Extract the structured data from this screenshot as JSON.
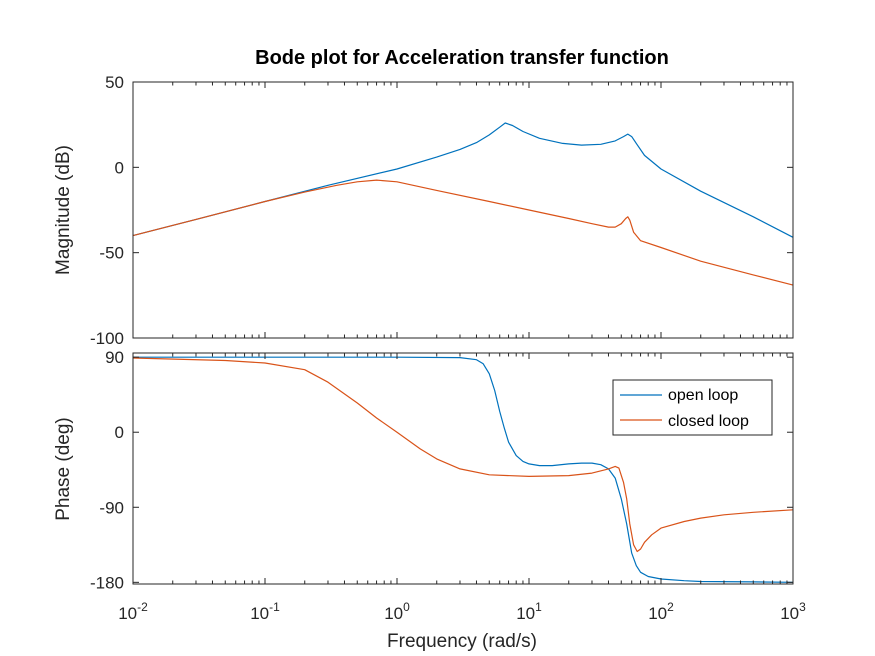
{
  "chart_data": {
    "type": "line",
    "title": "Bode plot for Acceleration transfer function",
    "xlabel": "Frequency  (rad/s)",
    "x_scale": "log",
    "xlim": [
      0.01,
      1000
    ],
    "x_ticks": [
      {
        "value": 0.01,
        "base": "10",
        "exp": "-2"
      },
      {
        "value": 0.1,
        "base": "10",
        "exp": "-1"
      },
      {
        "value": 1,
        "base": "10",
        "exp": "0"
      },
      {
        "value": 10,
        "base": "10",
        "exp": "1"
      },
      {
        "value": 100,
        "base": "10",
        "exp": "2"
      },
      {
        "value": 1000,
        "base": "10",
        "exp": "3"
      }
    ],
    "grid": false,
    "legend": {
      "location": "upper-right of phase plot",
      "entries": [
        {
          "name": "open loop",
          "color": "#0072BD"
        },
        {
          "name": "closed loop",
          "color": "#D95319"
        }
      ]
    },
    "subplots": [
      {
        "id": "magnitude",
        "ylabel": "Magnitude (dB)",
        "ylim": [
          -100,
          50
        ],
        "y_ticks": [
          50,
          0,
          -50,
          -100
        ],
        "y_tick_labels": [
          "50",
          "0",
          "-50",
          "-100"
        ],
        "series": [
          {
            "name": "open loop",
            "color": "#0072BD",
            "x": [
              0.01,
              0.03,
              0.1,
              0.3,
              1,
              2,
              3,
              4,
              5,
              6,
              6.6,
              7.5,
              9,
              12,
              18,
              25,
              35,
              45,
              52,
              56,
              60,
              65,
              75,
              100,
              200,
              500,
              1000
            ],
            "y": [
              -40,
              -30.5,
              -20,
              -10.5,
              -1,
              6,
              10.5,
              14.5,
              19,
              23.5,
              26,
              24.5,
              21,
              17,
              14,
              13,
              13.5,
              15.5,
              18,
              19.5,
              18,
              14,
              7,
              -1,
              -14,
              -29,
              -41
            ]
          },
          {
            "name": "closed loop",
            "color": "#D95319",
            "x": [
              0.01,
              0.03,
              0.1,
              0.2,
              0.35,
              0.5,
              0.7,
              1,
              2,
              5,
              10,
              20,
              30,
              40,
              45,
              50,
              54,
              56,
              58,
              62,
              70,
              100,
              200,
              500,
              1000
            ],
            "y": [
              -40,
              -30.5,
              -20,
              -14.5,
              -10.5,
              -8.5,
              -7.5,
              -8.5,
              -13.5,
              -20,
              -25,
              -30,
              -33,
              -35,
              -35,
              -33,
              -30,
              -29,
              -31,
              -38,
              -43,
              -47,
              -55,
              -63,
              -69
            ]
          }
        ]
      },
      {
        "id": "phase",
        "ylabel": "Phase (deg)",
        "ylim": [
          -182,
          95
        ],
        "y_ticks": [
          90,
          0,
          -90,
          -180
        ],
        "y_tick_labels": [
          "90",
          "0",
          "-90",
          "-180"
        ],
        "series": [
          {
            "name": "open loop",
            "color": "#0072BD",
            "x": [
              0.01,
              0.1,
              1,
              3,
              4,
              4.5,
              5,
              5.5,
              6,
              6.5,
              7,
              8,
              9,
              10,
              12,
              15,
              20,
              25,
              30,
              35,
              40,
              45,
              50,
              55,
              60,
              65,
              70,
              80,
              100,
              150,
              200,
              500,
              1000
            ],
            "y": [
              90,
              90,
              90,
              89.5,
              87,
              82,
              70,
              50,
              25,
              5,
              -12,
              -28,
              -35,
              -38,
              -40,
              -40,
              -38,
              -37,
              -37,
              -39,
              -44,
              -55,
              -80,
              -110,
              -145,
              -160,
              -168,
              -173,
              -176,
              -178,
              -179,
              -179.5,
              -180
            ]
          },
          {
            "name": "closed loop",
            "color": "#D95319",
            "x": [
              0.01,
              0.05,
              0.1,
              0.2,
              0.3,
              0.5,
              0.7,
              1,
              1.5,
              2,
              3,
              5,
              10,
              20,
              30,
              40,
              45,
              48,
              52,
              55,
              58,
              62,
              66,
              70,
              75,
              85,
              100,
              150,
              200,
              300,
              500,
              1000
            ],
            "y": [
              89,
              86,
              83,
              75,
              60,
              35,
              17,
              0,
              -20,
              -32,
              -44,
              -51,
              -53,
              -52,
              -49,
              -44,
              -41,
              -43,
              -60,
              -80,
              -110,
              -135,
              -143,
              -140,
              -132,
              -123,
              -115,
              -107,
              -103,
              -99,
              -96,
              -93
            ]
          }
        ]
      }
    ]
  }
}
